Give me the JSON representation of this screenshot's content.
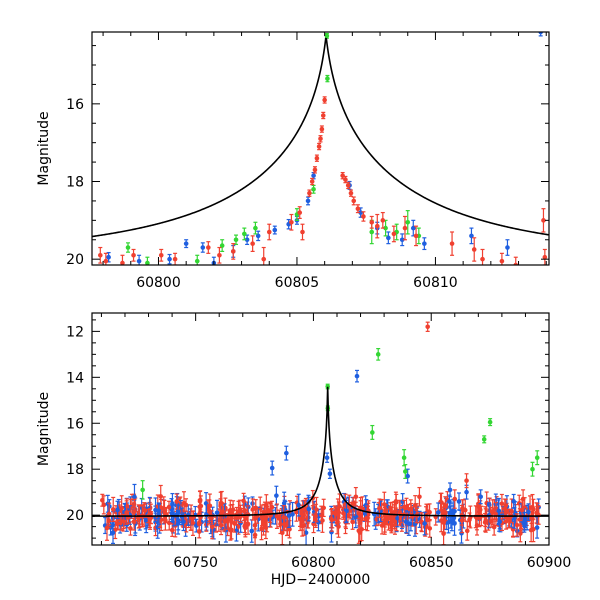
{
  "chart_data": [
    {
      "type": "scatter",
      "panel": "top",
      "ylabel": "Magnitude",
      "xlabel": "",
      "xlim": [
        60797.6,
        60814.1
      ],
      "ylim": [
        20.15,
        14.15
      ],
      "y_inverted": true,
      "x_ticks": [
        60800,
        60805,
        60810
      ],
      "x_tick_labels": [
        "60800",
        "60805",
        "60810"
      ],
      "y_ticks": [
        16,
        18,
        20
      ],
      "y_tick_labels": [
        "16",
        "18",
        "20"
      ],
      "grid": false,
      "legend": "none",
      "model_curve": {
        "t0": 60806.05,
        "baseline_mag": 20.05,
        "peak_mag": 14.25,
        "color": "#000000"
      },
      "series": [
        {
          "color": "#1f5fe0",
          "points": [
            [
              60798.2,
              19.95,
              0.12
            ],
            [
              60799.3,
              20.05,
              0.15
            ],
            [
              60800.4,
              20.0,
              0.12
            ],
            [
              60801.0,
              19.6,
              0.1
            ],
            [
              60801.6,
              19.7,
              0.12
            ],
            [
              60802.0,
              20.1,
              0.15
            ],
            [
              60802.7,
              19.8,
              0.15
            ],
            [
              60803.2,
              19.5,
              0.12
            ],
            [
              60803.6,
              19.4,
              0.12
            ],
            [
              60804.2,
              19.25,
              0.1
            ],
            [
              60804.7,
              19.1,
              0.12
            ],
            [
              60805.0,
              19.0,
              0.1
            ],
            [
              60805.4,
              18.5,
              0.1
            ],
            [
              60805.6,
              17.85,
              0.08
            ],
            [
              60806.9,
              18.1,
              0.1
            ],
            [
              60807.3,
              18.8,
              0.12
            ],
            [
              60807.9,
              19.2,
              0.15
            ],
            [
              60808.3,
              19.45,
              0.15
            ],
            [
              60808.8,
              19.5,
              0.15
            ],
            [
              60809.2,
              19.2,
              0.2
            ],
            [
              60809.6,
              19.6,
              0.15
            ],
            [
              60811.3,
              19.4,
              0.2
            ],
            [
              60812.6,
              19.7,
              0.2
            ],
            [
              60813.8,
              14.15,
              0.1
            ]
          ]
        },
        {
          "color": "#33d633",
          "points": [
            [
              60798.9,
              19.7,
              0.12
            ],
            [
              60799.6,
              20.1,
              0.15
            ],
            [
              60801.4,
              20.05,
              0.15
            ],
            [
              60802.3,
              19.65,
              0.15
            ],
            [
              60802.8,
              19.5,
              0.12
            ],
            [
              60803.1,
              19.35,
              0.15
            ],
            [
              60803.5,
              19.2,
              0.15
            ],
            [
              60805.0,
              18.85,
              0.15
            ],
            [
              60805.6,
              18.2,
              0.1
            ],
            [
              60806.08,
              14.25,
              0.06
            ],
            [
              60806.1,
              15.35,
              0.08
            ],
            [
              60807.7,
              19.3,
              0.3
            ],
            [
              60808.2,
              19.2,
              0.2
            ],
            [
              60808.6,
              19.3,
              0.2
            ],
            [
              60809.0,
              19.05,
              0.3
            ],
            [
              60809.4,
              19.4,
              0.2
            ]
          ]
        },
        {
          "color": "#f04030",
          "points": [
            [
              60797.9,
              19.9,
              0.2
            ],
            [
              60798.1,
              20.05,
              0.2
            ],
            [
              60798.7,
              20.1,
              0.2
            ],
            [
              60799.1,
              19.9,
              0.15
            ],
            [
              60800.1,
              19.9,
              0.15
            ],
            [
              60800.6,
              20.0,
              0.15
            ],
            [
              60801.8,
              19.7,
              0.15
            ],
            [
              60802.2,
              19.9,
              0.2
            ],
            [
              60802.7,
              19.8,
              0.2
            ],
            [
              60803.4,
              19.6,
              0.2
            ],
            [
              60803.8,
              20.0,
              0.3
            ],
            [
              60804.0,
              19.3,
              0.2
            ],
            [
              60804.8,
              19.05,
              0.2
            ],
            [
              60805.1,
              18.8,
              0.15
            ],
            [
              60805.2,
              19.3,
              0.2
            ],
            [
              60805.45,
              18.3,
              0.08
            ],
            [
              60805.55,
              18.0,
              0.08
            ],
            [
              60805.65,
              17.7,
              0.08
            ],
            [
              60805.72,
              17.4,
              0.08
            ],
            [
              60805.8,
              17.1,
              0.08
            ],
            [
              60805.85,
              16.9,
              0.08
            ],
            [
              60805.9,
              16.65,
              0.08
            ],
            [
              60805.95,
              16.3,
              0.08
            ],
            [
              60806.0,
              15.9,
              0.08
            ],
            [
              60806.65,
              17.85,
              0.08
            ],
            [
              60806.75,
              17.95,
              0.08
            ],
            [
              60806.85,
              18.1,
              0.08
            ],
            [
              60806.95,
              18.3,
              0.08
            ],
            [
              60807.05,
              18.5,
              0.1
            ],
            [
              60807.2,
              18.7,
              0.1
            ],
            [
              60807.4,
              18.9,
              0.12
            ],
            [
              60807.7,
              19.05,
              0.15
            ],
            [
              60807.9,
              19.15,
              0.3
            ],
            [
              60808.1,
              19.0,
              0.2
            ],
            [
              60808.5,
              19.35,
              0.2
            ],
            [
              60808.9,
              19.2,
              0.3
            ],
            [
              60809.3,
              19.4,
              0.25
            ],
            [
              60810.6,
              19.6,
              0.3
            ],
            [
              60811.4,
              19.75,
              0.3
            ],
            [
              60811.7,
              20.0,
              0.25
            ],
            [
              60812.4,
              20.05,
              0.2
            ],
            [
              60812.9,
              20.15,
              0.2
            ],
            [
              60813.9,
              19.0,
              0.3
            ],
            [
              60813.95,
              19.95,
              0.2
            ]
          ]
        }
      ]
    },
    {
      "type": "scatter",
      "panel": "bottom",
      "ylabel": "Magnitude",
      "xlabel": "HJD−2400000",
      "xlim": [
        60706,
        60900
      ],
      "ylim": [
        21.3,
        11.2
      ],
      "y_inverted": true,
      "x_ticks": [
        60750,
        60800,
        60850,
        60900
      ],
      "x_tick_labels": [
        "60750",
        "60800",
        "60850",
        "60900"
      ],
      "y_ticks": [
        12,
        14,
        16,
        18,
        20
      ],
      "y_tick_labels": [
        "12",
        "14",
        "16",
        "18",
        "20"
      ],
      "grid": false,
      "legend": "none",
      "model_curve": {
        "t0": 60806.05,
        "baseline_mag": 20.05,
        "peak_mag": 14.4,
        "color": "#000000"
      },
      "baseline_cloud": {
        "x_from": 60710,
        "x_to": 60896,
        "center_mag": 20.0,
        "spread": 0.45,
        "density_per_day": 3
      },
      "series": [
        {
          "color": "#1f5fe0",
          "points": [
            [
              60782.5,
              17.95,
              0.3
            ],
            [
              60788.5,
              17.3,
              0.3
            ],
            [
              60805.8,
              17.5,
              0.2
            ],
            [
              60807,
              18.2,
              0.2
            ],
            [
              60818.5,
              13.95,
              0.25
            ],
            [
              60840,
              18.3,
              0.3
            ],
            [
              60858,
              18.9,
              0.3
            ],
            [
              60865,
              19.0,
              0.3
            ],
            [
              60871,
              19.2,
              0.3
            ],
            [
              60885,
              19.4,
              0.3
            ]
          ]
        },
        {
          "color": "#33d633",
          "points": [
            [
              60727.5,
              18.9,
              0.4
            ],
            [
              60806.05,
              14.4,
              0.1
            ],
            [
              60806.1,
              15.35,
              0.1
            ],
            [
              60827.5,
              13.0,
              0.25
            ],
            [
              60825,
              16.4,
              0.3
            ],
            [
              60838.5,
              17.5,
              0.35
            ],
            [
              60839,
              18.1,
              0.3
            ],
            [
              60872.5,
              16.7,
              0.15
            ],
            [
              60875,
              15.95,
              0.15
            ],
            [
              60893,
              18.0,
              0.3
            ],
            [
              60895,
              17.5,
              0.3
            ]
          ]
        },
        {
          "color": "#f04030",
          "points": [
            [
              60848.5,
              11.8,
              0.2
            ],
            [
              60865,
              18.5,
              0.3
            ],
            [
              60856,
              19.6,
              0.4
            ],
            [
              60818,
              19.2,
              0.4
            ],
            [
              60828,
              19.7,
              0.4
            ],
            [
              60835,
              19.4,
              0.4
            ],
            [
              60845,
              19.2,
              0.4
            ],
            [
              60860,
              19.3,
              0.4
            ],
            [
              60880,
              19.5,
              0.4
            ],
            [
              60889,
              19.3,
              0.4
            ]
          ]
        }
      ]
    }
  ]
}
